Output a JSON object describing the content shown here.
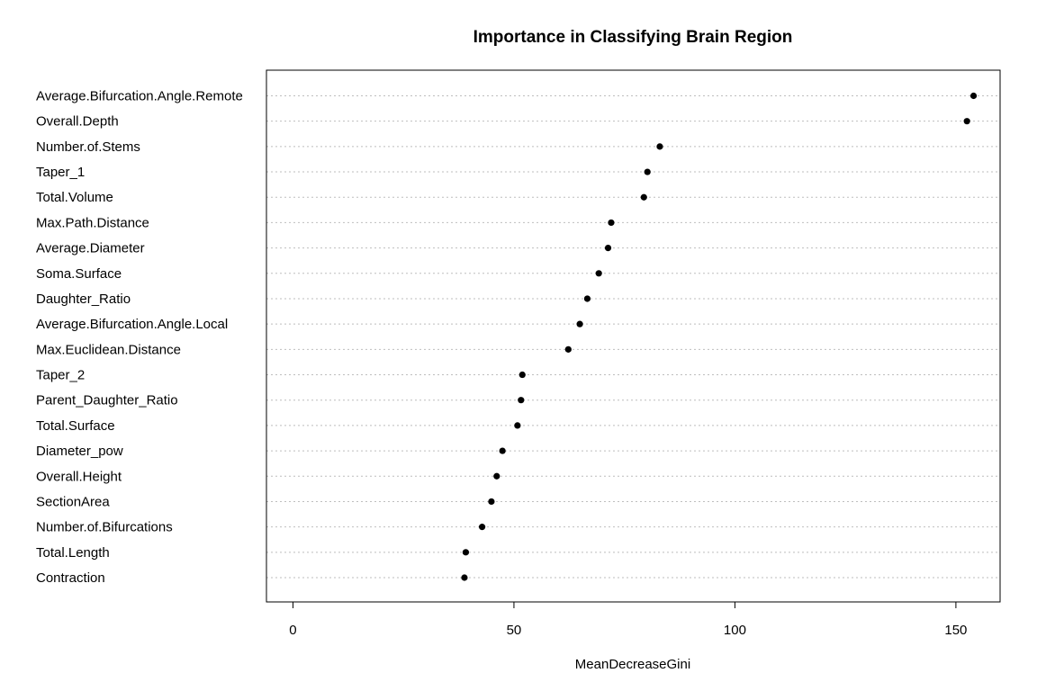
{
  "chart_data": {
    "type": "scatter",
    "title": "Importance in Classifying Brain Region",
    "xlabel": "MeanDecreaseGini",
    "ylabel": "",
    "xlim": [
      -6,
      160
    ],
    "x_ticks": [
      0,
      50,
      100,
      150
    ],
    "grid": "dotted horizontal guide lines",
    "legend": "none",
    "point_color": "#000000",
    "grid_color": "#bebebe",
    "categories": [
      "Average.Bifurcation.Angle.Remote",
      "Overall.Depth",
      "Number.of.Stems",
      "Taper_1",
      "Total.Volume",
      "Max.Path.Distance",
      "Average.Diameter",
      "Soma.Surface",
      "Daughter_Ratio",
      "Average.Bifurcation.Angle.Local",
      "Max.Euclidean.Distance",
      "Taper_2",
      "Parent_Daughter_Ratio",
      "Total.Surface",
      "Diameter_pow",
      "Overall.Height",
      "SectionArea",
      "Number.of.Bifurcations",
      "Total.Length",
      "Contraction"
    ],
    "values": [
      154.0,
      152.5,
      83.0,
      80.2,
      79.4,
      72.0,
      71.3,
      69.2,
      66.6,
      64.9,
      62.3,
      51.9,
      51.6,
      50.8,
      47.4,
      46.1,
      44.9,
      42.8,
      39.1,
      38.8
    ]
  }
}
